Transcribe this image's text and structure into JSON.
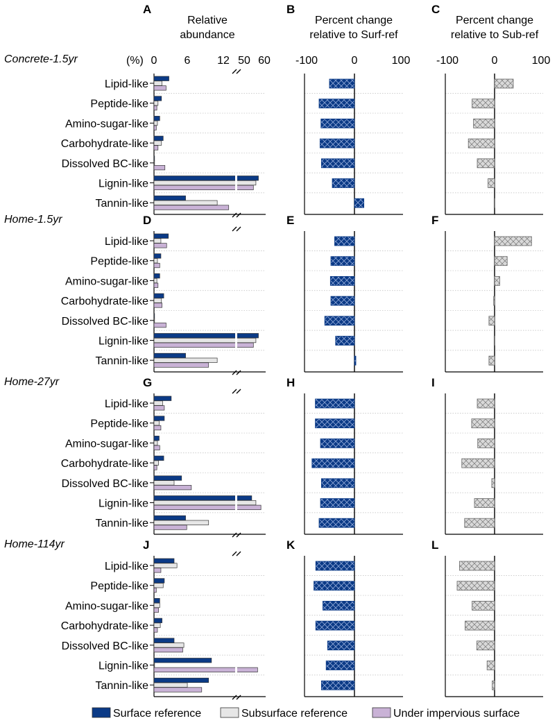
{
  "categories": [
    "Lipid-like",
    "Peptide-like",
    "Amino-sugar-like",
    "Carbohydrate-like",
    "Dissolved BC-like",
    "Lignin-like",
    "Tannin-like"
  ],
  "column_headers": {
    "A": [
      "Relative",
      "abundance"
    ],
    "B": [
      "Percent change",
      "relative to Surf-ref"
    ],
    "C": [
      "Percent change",
      "relative to Sub-ref"
    ]
  },
  "percent_unit": "(%)",
  "abundance_ticks": [
    "0",
    "6",
    "12",
    "50",
    "60"
  ],
  "pct_ticks": [
    "-100",
    "0",
    "100"
  ],
  "legend": [
    {
      "label": "Surface reference",
      "color": "#0b3a86"
    },
    {
      "label": "Subsurface reference",
      "color": "#e6e6e6"
    },
    {
      "label": "Under impervious surface",
      "color": "#c9b2d6"
    }
  ],
  "colors": {
    "surface": "#0b3a86",
    "subsurface": "#e6e6e6",
    "impervious": "#c9b2d6",
    "pct_surf": "#0b3a86",
    "pct_sub": "#d9d9d9"
  },
  "chart_data": [
    {
      "type": "bar",
      "row_title": "Concrete-1.5yr",
      "panel_letters": [
        "A",
        "B",
        "C"
      ],
      "abundance": {
        "xlim": [
          0,
          60
        ],
        "axis_break": [
          14,
          48
        ],
        "units": "%",
        "series": [
          {
            "name": "Surface reference",
            "values": [
              2.6,
              1.3,
              1.0,
              1.6,
              0.1,
              56.5,
              5.5
            ]
          },
          {
            "name": "Subsurface reference",
            "values": [
              1.4,
              0.7,
              0.6,
              1.3,
              0.1,
              55.0,
              11.0
            ]
          },
          {
            "name": "Under impervious surface",
            "values": [
              2.1,
              0.5,
              0.4,
              0.7,
              1.9,
              53.5,
              13.0
            ]
          }
        ]
      },
      "pct_change_surf_ref": {
        "xlim": [
          -100,
          100
        ],
        "values": [
          -53,
          -75,
          -71,
          -73,
          -70,
          -47,
          20
        ]
      },
      "pct_change_sub_ref": {
        "xlim": [
          -100,
          100
        ],
        "values": [
          40,
          -48,
          -45,
          -56,
          -37,
          -14,
          -1
        ]
      }
    },
    {
      "type": "bar",
      "row_title": "Home-1.5yr",
      "panel_letters": [
        "D",
        "E",
        "F"
      ],
      "abundance": {
        "xlim": [
          0,
          60
        ],
        "axis_break": [
          14,
          48
        ],
        "units": "%",
        "series": [
          {
            "name": "Surface reference",
            "values": [
              2.5,
              1.2,
              1.0,
              1.7,
              0.1,
              56.5,
              5.5
            ]
          },
          {
            "name": "Subsurface reference",
            "values": [
              1.2,
              0.6,
              0.5,
              1.3,
              0.1,
              55.0,
              11.0
            ]
          },
          {
            "name": "Under impervious surface",
            "values": [
              2.2,
              1.0,
              0.7,
              1.4,
              2.1,
              53.5,
              9.5
            ]
          }
        ]
      },
      "pct_change_surf_ref": {
        "xlim": [
          -100,
          100
        ],
        "values": [
          -42,
          -50,
          -51,
          -50,
          -63,
          -40,
          3
        ]
      },
      "pct_change_sub_ref": {
        "xlim": [
          -100,
          100
        ],
        "values": [
          79,
          27,
          11,
          -2,
          -12,
          -1,
          -12
        ]
      }
    },
    {
      "type": "bar",
      "row_title": "Home-27yr",
      "panel_letters": [
        "G",
        "H",
        "I"
      ],
      "abundance": {
        "xlim": [
          0,
          60
        ],
        "axis_break": [
          14,
          48
        ],
        "units": "%",
        "series": [
          {
            "name": "Surface reference",
            "values": [
              3.0,
              1.8,
              0.9,
              1.7,
              4.8,
              52.5,
              5.5
            ]
          },
          {
            "name": "Subsurface reference",
            "values": [
              1.5,
              0.9,
              0.6,
              0.8,
              3.5,
              55.0,
              9.5
            ]
          },
          {
            "name": "Under impervious surface",
            "values": [
              1.8,
              1.2,
              1.0,
              0.5,
              6.5,
              58.0,
              5.7
            ]
          }
        ]
      },
      "pct_change_surf_ref": {
        "xlim": [
          -100,
          100
        ],
        "values": [
          -83,
          -83,
          -72,
          -90,
          -70,
          -72,
          -75
        ]
      },
      "pct_change_sub_ref": {
        "xlim": [
          -100,
          100
        ],
        "values": [
          -37,
          -49,
          -36,
          -70,
          -6,
          -43,
          -64
        ]
      }
    },
    {
      "type": "bar",
      "row_title": "Home-114yr",
      "panel_letters": [
        "J",
        "K",
        "L"
      ],
      "abundance": {
        "xlim": [
          0,
          60
        ],
        "axis_break": [
          14,
          48
        ],
        "units": "%",
        "series": [
          {
            "name": "Surface reference",
            "values": [
              3.5,
              1.8,
              1.0,
              1.4,
              3.5,
              10.0,
              9.5
            ]
          },
          {
            "name": "Subsurface reference",
            "values": [
              4.0,
              1.6,
              1.0,
              1.1,
              5.2,
              0.1,
              5.8
            ]
          },
          {
            "name": "Under impervious surface",
            "values": [
              1.2,
              0.4,
              0.8,
              0.6,
              5.0,
              56.0,
              8.3
            ]
          }
        ]
      },
      "pct_change_surf_ref": {
        "xlim": [
          -100,
          100
        ],
        "values": [
          -82,
          -86,
          -67,
          -82,
          -57,
          -60,
          -70
        ]
      },
      "pct_change_sub_ref": {
        "xlim": [
          -100,
          100
        ],
        "values": [
          -75,
          -80,
          -48,
          -63,
          -38,
          -16,
          -5
        ]
      }
    }
  ]
}
